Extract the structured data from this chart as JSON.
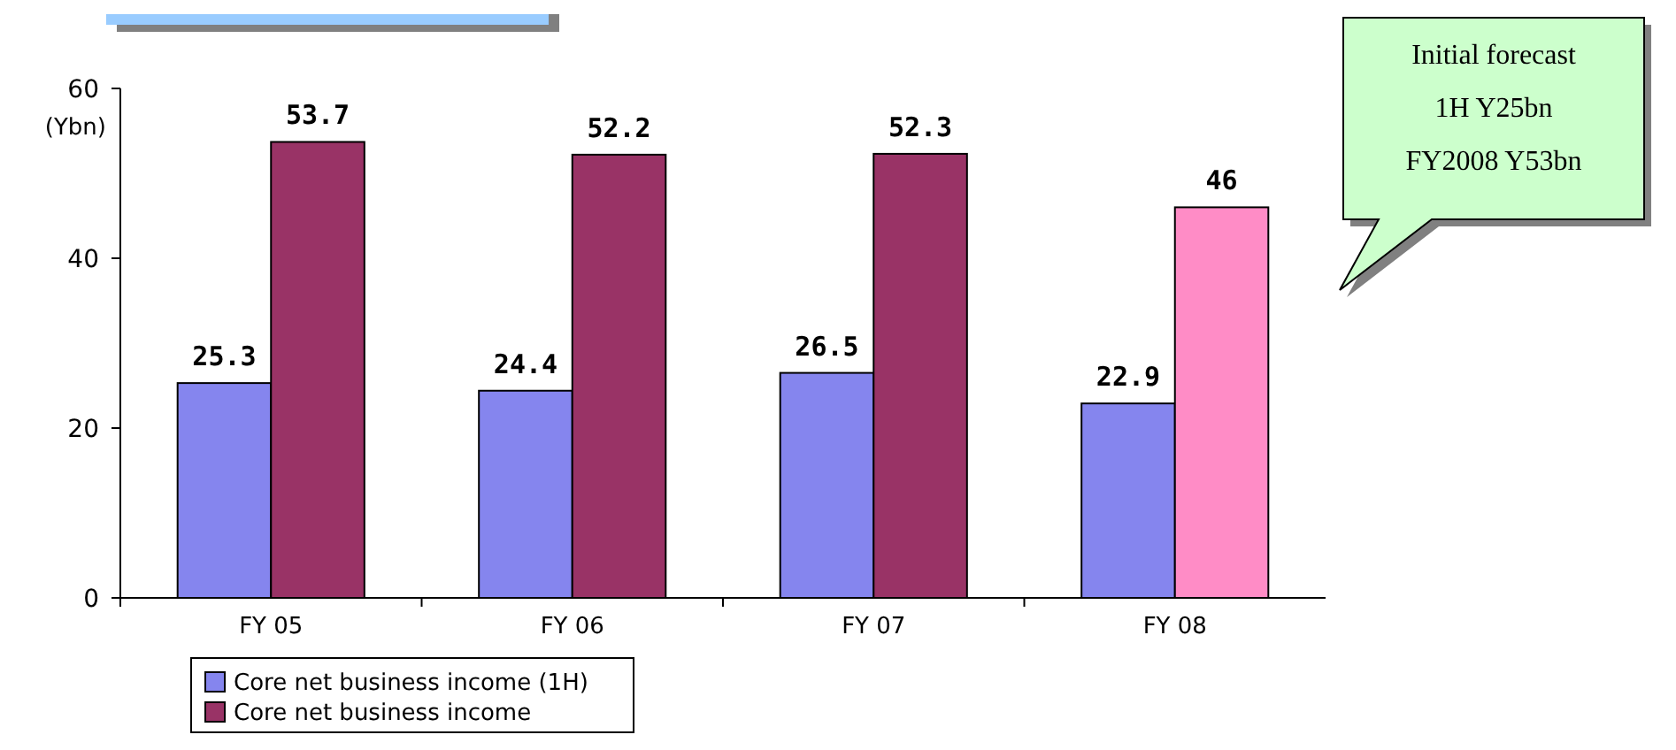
{
  "chart_data": {
    "type": "bar",
    "ylabel": "(Ybn)",
    "categories": [
      "FY 05",
      "FY 06",
      "FY 07",
      "FY 08"
    ],
    "series": [
      {
        "name": "Core net business income (1H)",
        "color": "#8585ee",
        "values": [
          25.3,
          24.4,
          26.5,
          22.9
        ]
      },
      {
        "name": "Core net business income",
        "color": "#993366",
        "colors": [
          "#993366",
          "#993366",
          "#993366",
          "#ff8cc6"
        ],
        "values": [
          53.7,
          52.2,
          52.3,
          46
        ]
      }
    ],
    "ylim": [
      0,
      60
    ],
    "yticks": [
      0,
      20,
      40,
      60
    ],
    "grid": false,
    "legend": "bottom",
    "data_labels": true,
    "annotations": [
      "Initial forecast\n1H Y25bn\nFY2008 Y53bn"
    ]
  }
}
